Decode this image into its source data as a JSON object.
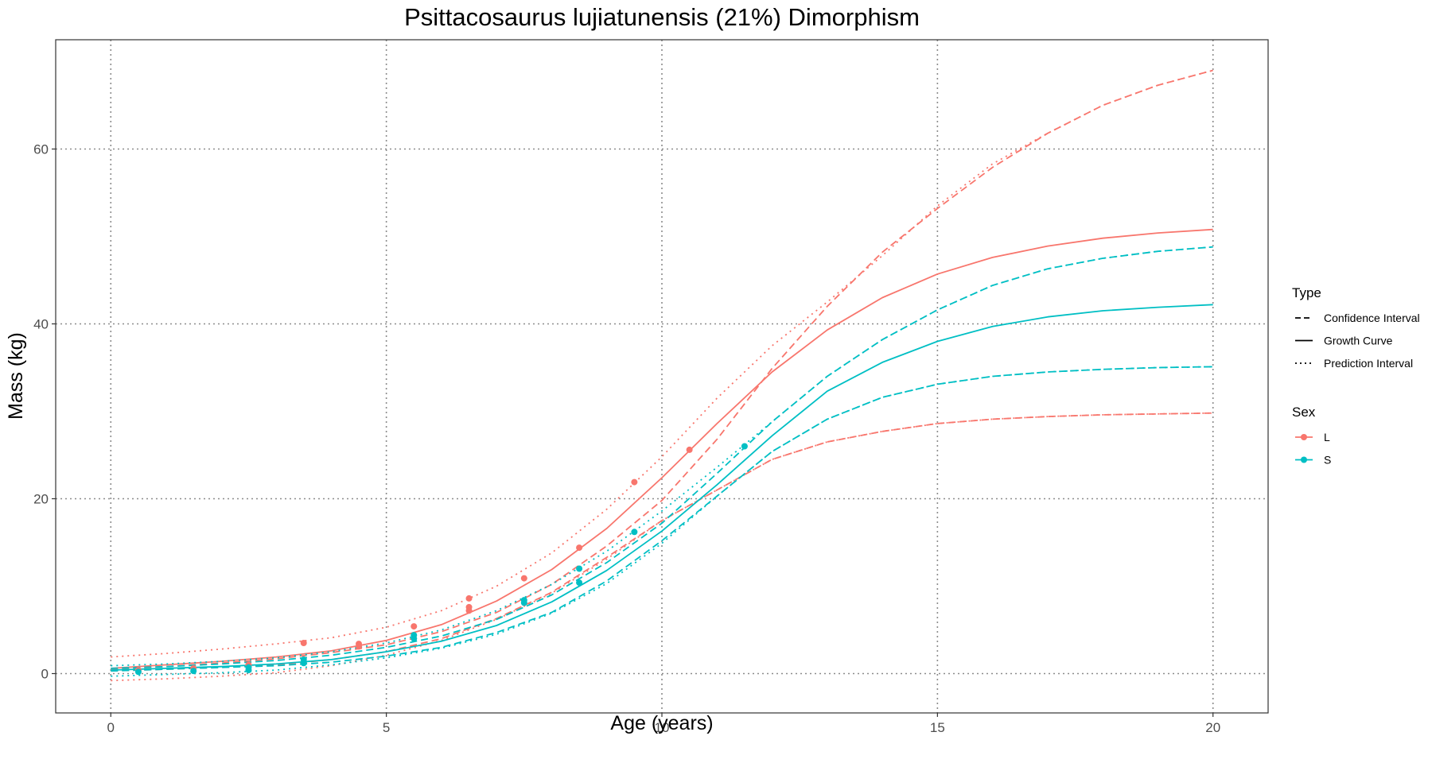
{
  "chart_data": {
    "type": "line",
    "title": "Psittacosaurus lujiatunensis (21%) Dimorphism",
    "xlabel": "Age (years)",
    "ylabel": "Mass (kg)",
    "xlim": [
      -1,
      21
    ],
    "ylim": [
      -4.5,
      72.5
    ],
    "x_ticks": [
      0,
      5,
      10,
      15,
      20
    ],
    "y_ticks": [
      0,
      20,
      40,
      60
    ],
    "grid": true,
    "grid_style": "dotted",
    "legend_position": "right",
    "colors": {
      "L": "#F8766D",
      "S": "#00BFC4"
    },
    "legend": {
      "type_title": "Type",
      "type_items": [
        {
          "label": "Confidence Interval",
          "dash": "dashed"
        },
        {
          "label": "Growth Curve",
          "dash": "solid"
        },
        {
          "label": "Prediction Interval",
          "dash": "dotted"
        }
      ],
      "sex_title": "Sex",
      "sex_items": [
        {
          "label": "L",
          "sex": "L"
        },
        {
          "label": "S",
          "sex": "S"
        }
      ]
    },
    "x": [
      0,
      1,
      2,
      3,
      4,
      5,
      6,
      7,
      8,
      9,
      10,
      11,
      12,
      13,
      14,
      15,
      16,
      17,
      18,
      19,
      20
    ],
    "series": [
      {
        "sex": "L",
        "kind": "Growth Curve",
        "values": [
          0.6,
          1.0,
          1.4,
          1.9,
          2.6,
          3.8,
          5.6,
          8.3,
          11.9,
          16.6,
          22.4,
          28.6,
          34.5,
          39.3,
          43.0,
          45.7,
          47.6,
          48.9,
          49.8,
          50.4,
          50.8
        ]
      },
      {
        "sex": "L",
        "kind": "Confidence Interval",
        "values": [
          0.5,
          0.8,
          1.2,
          1.7,
          2.4,
          3.3,
          4.8,
          7.0,
          10.2,
          14.6,
          19.8,
          26.8,
          34.9,
          42.0,
          48.2,
          53.2,
          57.9,
          61.8,
          65.0,
          67.3,
          69.0
        ]
      },
      {
        "sex": "L",
        "kind": "Confidence Interval",
        "values": [
          0.3,
          0.5,
          0.7,
          1.0,
          1.6,
          2.5,
          4.0,
          6.3,
          9.3,
          13.3,
          17.5,
          21.0,
          24.5,
          26.5,
          27.7,
          28.6,
          29.1,
          29.4,
          29.6,
          29.7,
          29.8
        ]
      },
      {
        "sex": "L",
        "kind": "Prediction Interval",
        "values": [
          1.9,
          2.3,
          2.8,
          3.4,
          4.1,
          5.3,
          7.2,
          10.0,
          13.8,
          18.8,
          24.8,
          31.5,
          37.5,
          42.5,
          47.8,
          53.5,
          58.3,
          61.8,
          65.0,
          67.3,
          69.0
        ]
      },
      {
        "sex": "L",
        "kind": "Prediction Interval",
        "values": [
          -0.8,
          -0.6,
          -0.3,
          0.1,
          0.9,
          2.1,
          3.8,
          6.2,
          9.2,
          13.1,
          17.5,
          21.0,
          24.5,
          26.5,
          27.7,
          28.6,
          29.1,
          29.4,
          29.6,
          29.7,
          29.8
        ]
      },
      {
        "sex": "S",
        "kind": "Growth Curve",
        "values": [
          0.4,
          0.6,
          0.8,
          1.1,
          1.6,
          2.5,
          3.7,
          5.5,
          8.2,
          11.8,
          16.3,
          21.6,
          27.2,
          32.3,
          35.6,
          38.0,
          39.7,
          40.8,
          41.5,
          41.9,
          42.2
        ]
      },
      {
        "sex": "S",
        "kind": "Confidence Interval",
        "values": [
          0.6,
          0.8,
          1.1,
          1.5,
          2.1,
          3.0,
          4.3,
          6.2,
          9.0,
          12.7,
          17.2,
          22.9,
          28.8,
          34.0,
          38.2,
          41.6,
          44.4,
          46.3,
          47.5,
          48.3,
          48.8
        ]
      },
      {
        "sex": "S",
        "kind": "Confidence Interval",
        "values": [
          0.3,
          0.5,
          0.7,
          0.9,
          1.3,
          2.0,
          3.0,
          4.7,
          7.0,
          10.6,
          15.2,
          20.3,
          25.4,
          29.1,
          31.6,
          33.1,
          34.0,
          34.5,
          34.8,
          35.0,
          35.1
        ]
      },
      {
        "sex": "S",
        "kind": "Prediction Interval",
        "values": [
          0.9,
          1.1,
          1.4,
          1.8,
          2.5,
          3.5,
          5.0,
          7.2,
          10.2,
          14.0,
          18.6,
          23.6,
          28.8,
          34.0,
          38.2,
          41.6,
          44.4,
          46.3,
          47.5,
          48.3,
          48.8
        ]
      },
      {
        "sex": "S",
        "kind": "Prediction Interval",
        "values": [
          -0.3,
          -0.1,
          0.1,
          0.4,
          1.0,
          1.8,
          2.9,
          4.5,
          6.9,
          10.3,
          14.9,
          20.3,
          25.4,
          29.1,
          31.6,
          33.1,
          34.0,
          34.5,
          34.8,
          35.0,
          35.1
        ]
      }
    ],
    "points": [
      {
        "sex": "L",
        "x": 0.5,
        "y": 0.4
      },
      {
        "sex": "L",
        "x": 1.5,
        "y": 0.6
      },
      {
        "sex": "L",
        "x": 2.5,
        "y": 1.0
      },
      {
        "sex": "L",
        "x": 3.5,
        "y": 3.5
      },
      {
        "sex": "L",
        "x": 4.5,
        "y": 3.4
      },
      {
        "sex": "L",
        "x": 4.5,
        "y": 3.1
      },
      {
        "sex": "L",
        "x": 5.5,
        "y": 5.4
      },
      {
        "sex": "L",
        "x": 6.5,
        "y": 8.6
      },
      {
        "sex": "L",
        "x": 6.5,
        "y": 7.6
      },
      {
        "sex": "L",
        "x": 6.5,
        "y": 7.2
      },
      {
        "sex": "L",
        "x": 7.5,
        "y": 10.9
      },
      {
        "sex": "L",
        "x": 8.5,
        "y": 14.4
      },
      {
        "sex": "L",
        "x": 9.5,
        "y": 21.9
      },
      {
        "sex": "L",
        "x": 10.5,
        "y": 25.6
      },
      {
        "sex": "S",
        "x": 0.5,
        "y": 0.2
      },
      {
        "sex": "S",
        "x": 1.5,
        "y": 0.3
      },
      {
        "sex": "S",
        "x": 2.5,
        "y": 0.7
      },
      {
        "sex": "S",
        "x": 2.5,
        "y": 0.4
      },
      {
        "sex": "S",
        "x": 3.5,
        "y": 1.2
      },
      {
        "sex": "S",
        "x": 3.5,
        "y": 1.6
      },
      {
        "sex": "S",
        "x": 5.5,
        "y": 4.4
      },
      {
        "sex": "S",
        "x": 5.5,
        "y": 4.0
      },
      {
        "sex": "S",
        "x": 7.5,
        "y": 8.1
      },
      {
        "sex": "S",
        "x": 7.5,
        "y": 8.4
      },
      {
        "sex": "S",
        "x": 8.5,
        "y": 12.0
      },
      {
        "sex": "S",
        "x": 8.5,
        "y": 10.4
      },
      {
        "sex": "S",
        "x": 9.5,
        "y": 16.2
      },
      {
        "sex": "S",
        "x": 11.5,
        "y": 26.0
      }
    ]
  }
}
